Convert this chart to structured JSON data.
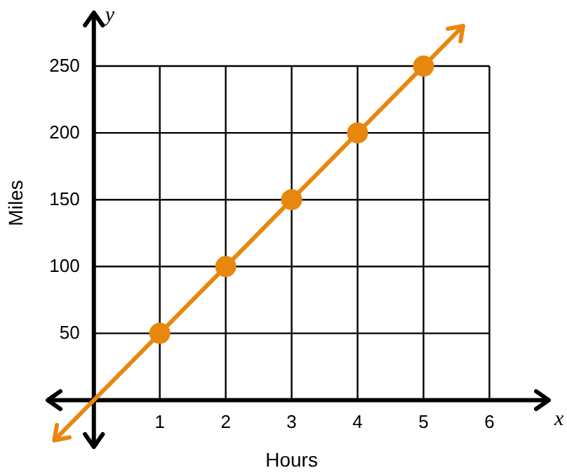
{
  "chart_data": {
    "type": "line",
    "xlabel": "Hours",
    "ylabel": "Miles",
    "annotations": [
      "x",
      "y"
    ],
    "xlim": [
      -0.7,
      6.9
    ],
    "ylim": [
      -35,
      290
    ],
    "xticks": [
      1,
      2,
      3,
      4,
      5,
      6
    ],
    "yticks": [
      50,
      100,
      150,
      200,
      250
    ],
    "grid": true,
    "marker": "circle",
    "color": "#e8870e",
    "x": [
      1,
      2,
      3,
      4,
      5
    ],
    "values": [
      50,
      100,
      150,
      200,
      250
    ]
  }
}
